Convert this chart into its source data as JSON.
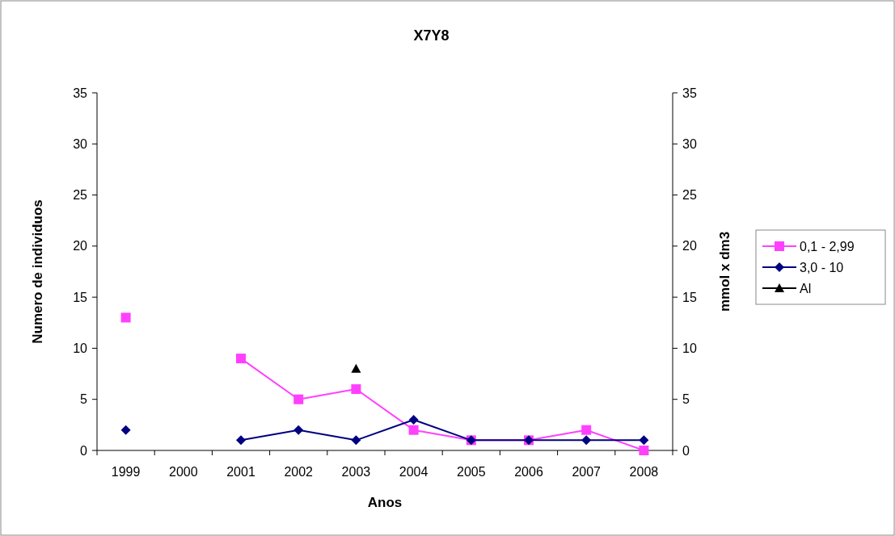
{
  "chart_data": {
    "type": "line",
    "title": "X7Y8",
    "xlabel": "Anos",
    "ylabel": "Numero de individuos",
    "y2label": "mmol x dm3",
    "categories": [
      "1999",
      "2000",
      "2001",
      "2002",
      "2003",
      "2004",
      "2005",
      "2006",
      "2007",
      "2008"
    ],
    "series": [
      {
        "name": "0,1 - 2,99",
        "color": "#ff40ff",
        "marker": "square",
        "values": [
          13,
          null,
          9,
          5,
          6,
          2,
          1,
          1,
          2,
          0
        ]
      },
      {
        "name": "3,0 - 10",
        "color": "#000080",
        "marker": "diamond",
        "values": [
          2,
          null,
          1,
          2,
          1,
          3,
          1,
          1,
          1,
          1
        ]
      },
      {
        "name": "Al",
        "color": "#000000",
        "marker": "triangle",
        "values": [
          null,
          null,
          null,
          null,
          8,
          null,
          null,
          null,
          null,
          null
        ]
      }
    ],
    "ylim": [
      0,
      35
    ],
    "yticks": [
      0,
      5,
      10,
      15,
      20,
      25,
      30,
      35
    ],
    "y2lim": [
      0,
      35
    ],
    "y2ticks": [
      0,
      5,
      10,
      15,
      20,
      25,
      30,
      35
    ],
    "grid": false,
    "legend": "right"
  }
}
